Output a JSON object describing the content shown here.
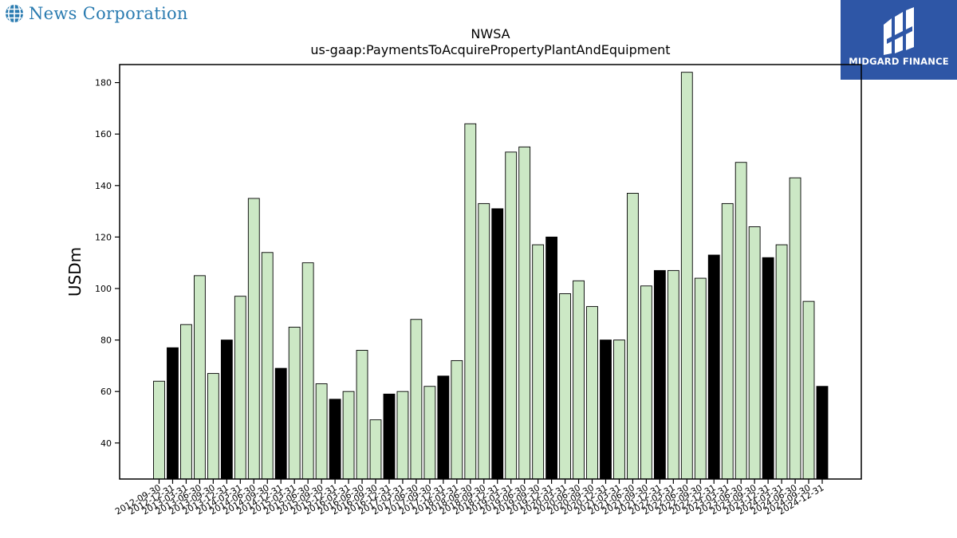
{
  "branding": {
    "company_name": "News Corporation",
    "partner_name": "MIDGARD FINANCE",
    "company_icon": "globe-icon",
    "partner_icon": "midgard-logo-icon",
    "company_color": "#2a7bb0",
    "partner_bg_color": "#2e56a6"
  },
  "chart_data": {
    "type": "bar",
    "title": "NWSA",
    "subtitle": "us-gaap:PaymentsToAcquirePropertyPlantAndEquipment",
    "xlabel": "",
    "ylabel": "USDm",
    "ylim": [
      26,
      187
    ],
    "yticks": [
      40,
      60,
      80,
      100,
      120,
      140,
      160,
      180
    ],
    "grid": false,
    "legend": "none",
    "colors": {
      "default": "#cce8c5",
      "highlight": "#000000",
      "edge": "#000000"
    },
    "categories": [
      "2012-09-30",
      "2012-12-31",
      "2013-03-31",
      "2013-06-30",
      "2013-09-30",
      "2013-12-31",
      "2014-03-31",
      "2014-06-30",
      "2014-09-30",
      "2014-12-31",
      "2015-03-31",
      "2015-06-30",
      "2015-09-30",
      "2015-12-31",
      "2016-03-31",
      "2016-06-30",
      "2016-09-30",
      "2016-12-31",
      "2017-03-31",
      "2017-06-30",
      "2017-09-30",
      "2017-12-31",
      "2018-03-31",
      "2018-06-30",
      "2018-09-30",
      "2018-12-31",
      "2019-03-31",
      "2019-06-30",
      "2019-09-30",
      "2019-12-31",
      "2020-03-31",
      "2020-06-30",
      "2020-09-30",
      "2020-12-31",
      "2021-03-31",
      "2021-06-30",
      "2021-09-30",
      "2021-12-31",
      "2022-03-31",
      "2022-06-30",
      "2022-09-30",
      "2022-12-31",
      "2023-03-31",
      "2023-06-30",
      "2023-09-30",
      "2023-12-31",
      "2024-03-31",
      "2024-06-30",
      "2024-09-30",
      "2024-12-31"
    ],
    "values": [
      64,
      77,
      86,
      105,
      67,
      80,
      97,
      135,
      114,
      69,
      85,
      110,
      63,
      57,
      60,
      76,
      49,
      59,
      60,
      88,
      62,
      66,
      72,
      164,
      133,
      131,
      153,
      155,
      117,
      120,
      98,
      103,
      93,
      80,
      80,
      137,
      101,
      107,
      107,
      184,
      104,
      113,
      133,
      149,
      124,
      112,
      117,
      143,
      95,
      62
    ],
    "highlighted": [
      false,
      true,
      false,
      false,
      false,
      true,
      false,
      false,
      false,
      true,
      false,
      false,
      false,
      true,
      false,
      false,
      false,
      true,
      false,
      false,
      false,
      true,
      false,
      false,
      false,
      true,
      false,
      false,
      false,
      true,
      false,
      false,
      false,
      true,
      false,
      false,
      false,
      true,
      false,
      false,
      false,
      true,
      false,
      false,
      false,
      true,
      false,
      false,
      false,
      true
    ]
  }
}
